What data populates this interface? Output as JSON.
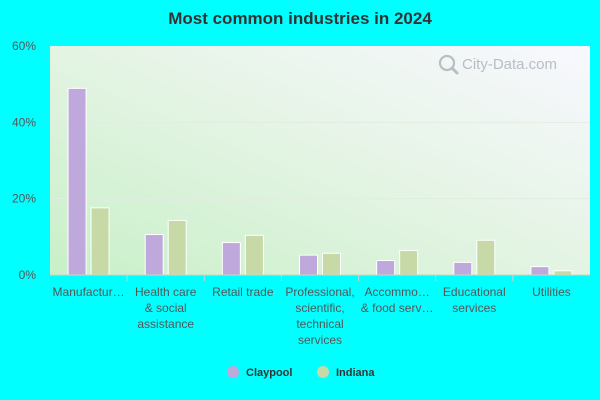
{
  "chart_data": {
    "type": "bar",
    "title": "Most common industries in 2024",
    "categories": [
      [
        "Manufactur…"
      ],
      [
        "Health care",
        "& social",
        "assistance"
      ],
      [
        "Retail trade"
      ],
      [
        "Professional,",
        "scientific,",
        "technical",
        "services"
      ],
      [
        "Accommo…",
        "& food serv…"
      ],
      [
        "Educational",
        "services"
      ],
      [
        "Utilities"
      ]
    ],
    "series": [
      {
        "name": "Claypool",
        "values": [
          48.9,
          10.6,
          8.5,
          5.2,
          3.8,
          3.3,
          2.2
        ],
        "color": "#bfa9dc"
      },
      {
        "name": "Indiana",
        "values": [
          17.6,
          14.3,
          10.4,
          5.7,
          6.4,
          9.1,
          1.1
        ],
        "color": "#c6d9a6"
      }
    ],
    "yticks": [
      "0%",
      "20%",
      "40%",
      "60%"
    ],
    "ylim": [
      0,
      60
    ],
    "grid": true,
    "legend_position": "bottom-center"
  },
  "watermark": {
    "text": "City-Data.com",
    "icon": "magnifier-icon"
  }
}
